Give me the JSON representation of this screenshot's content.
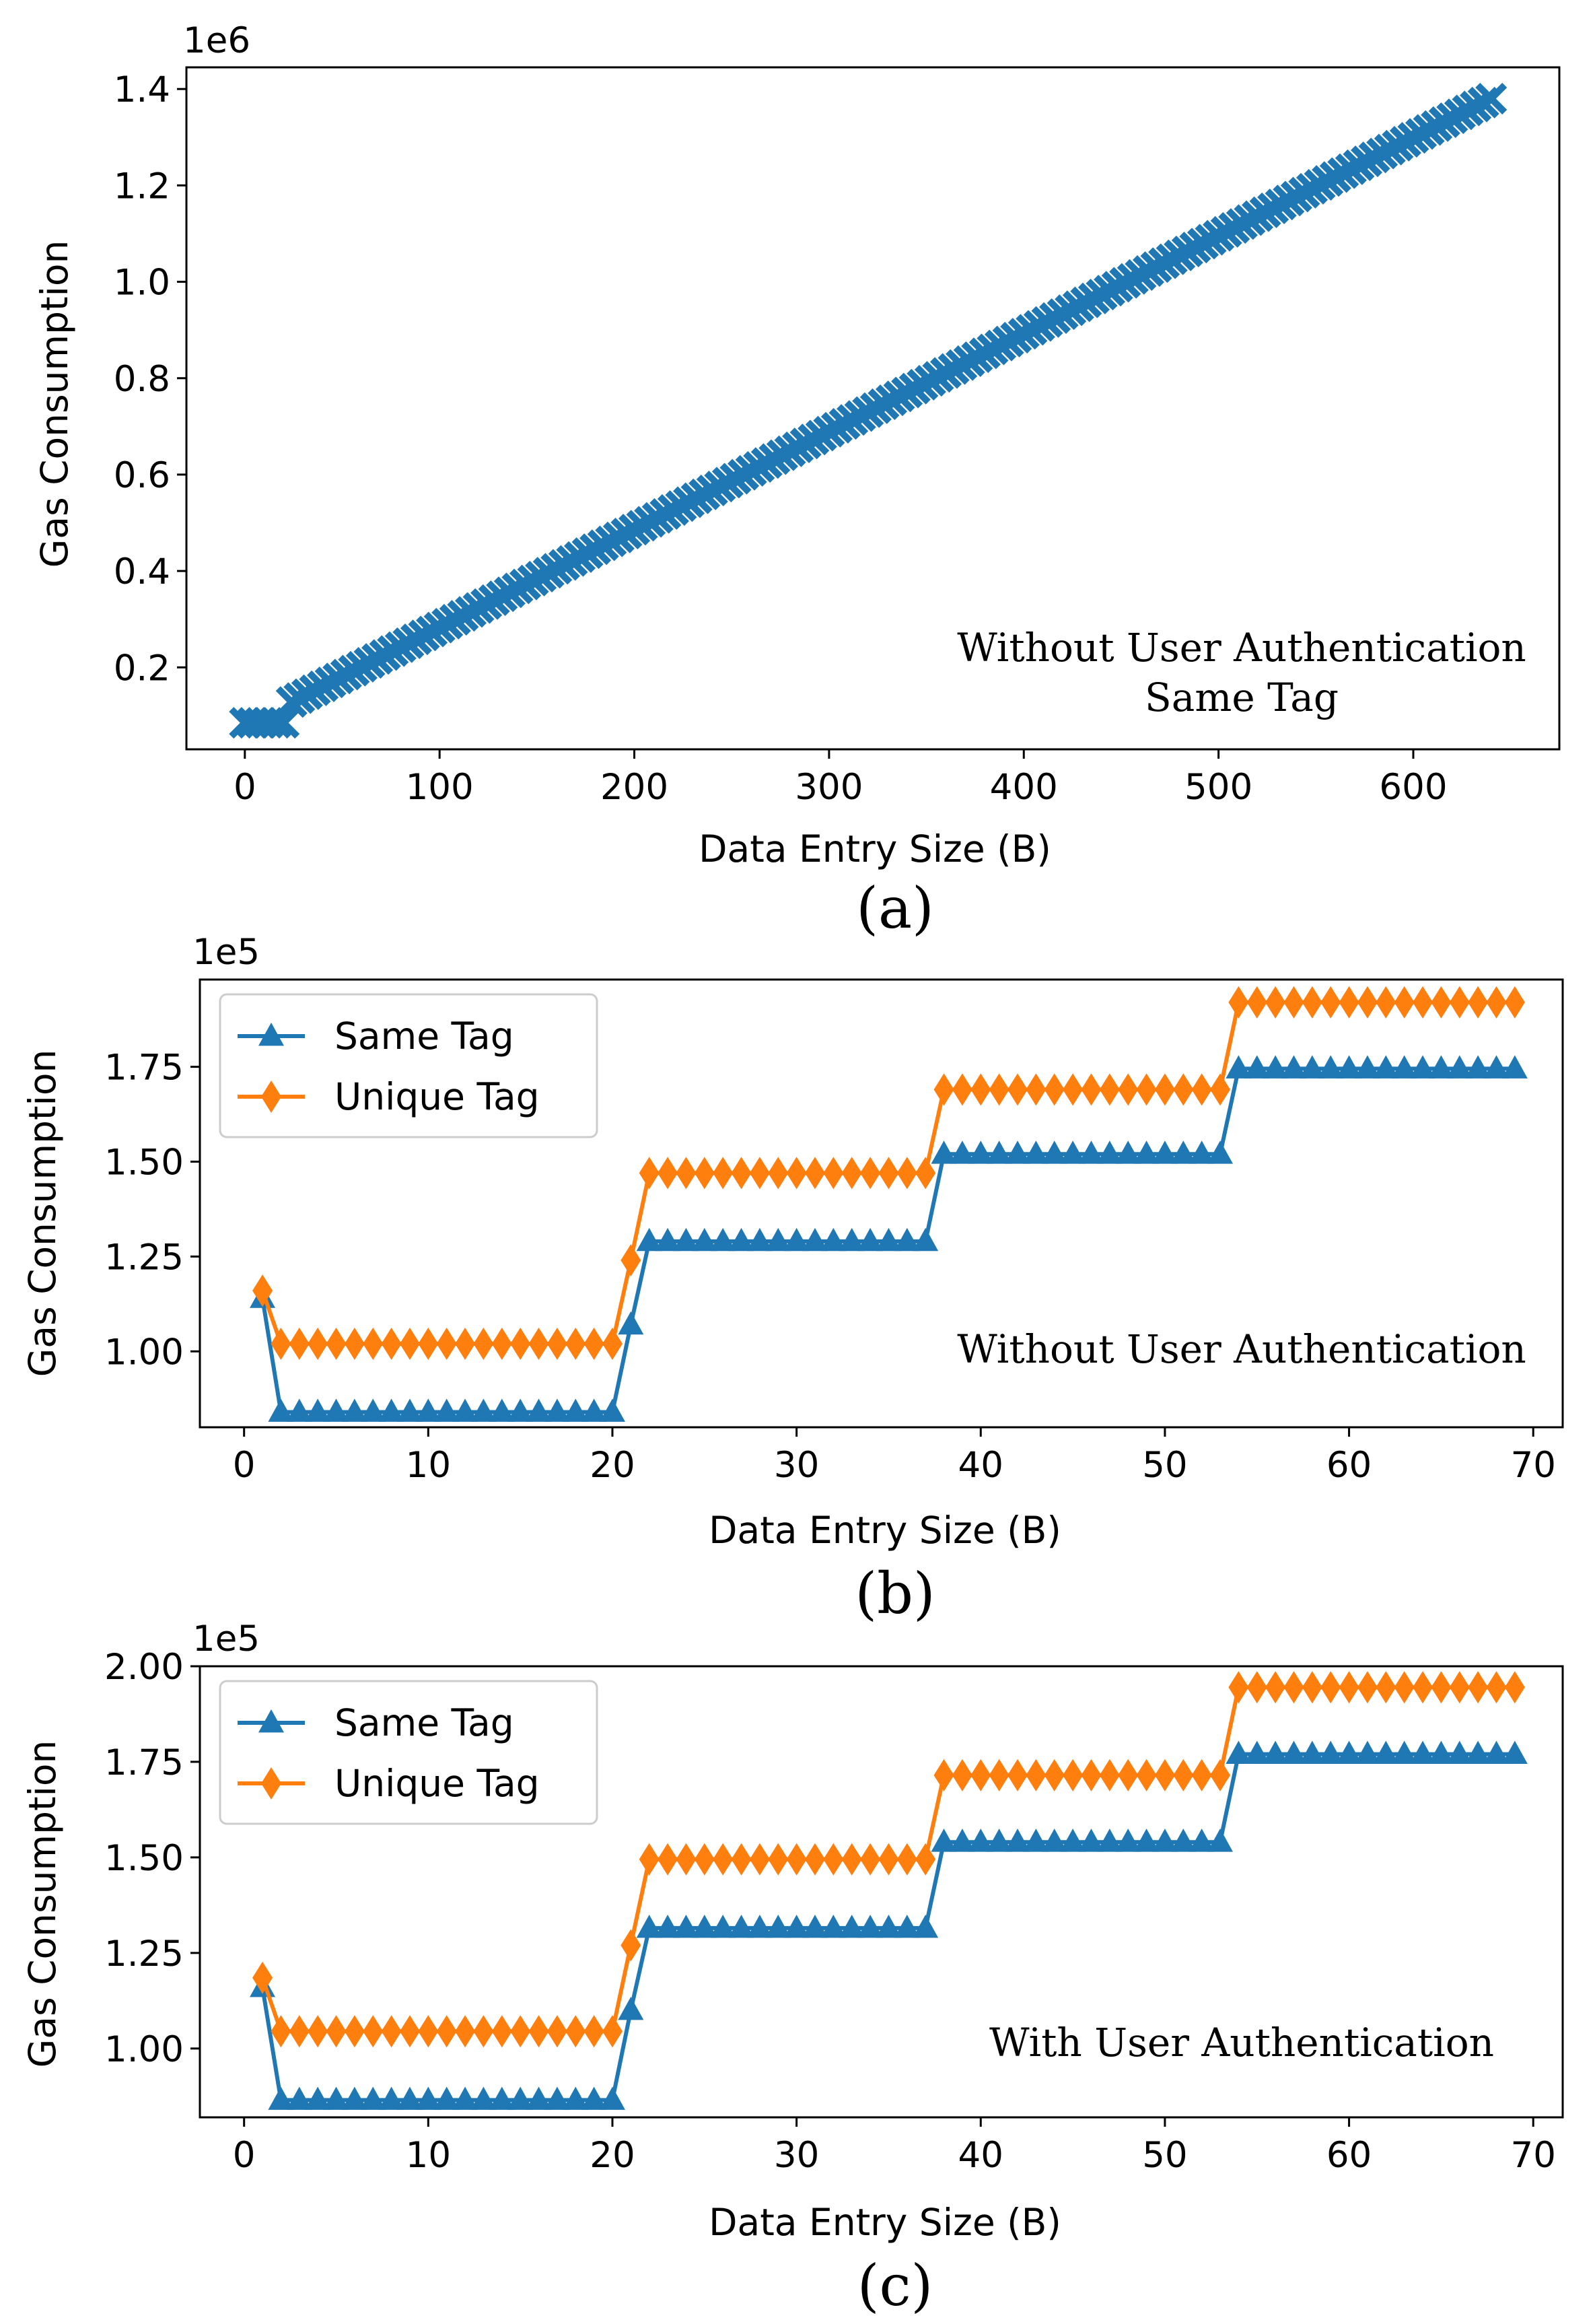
{
  "chart_data": [
    {
      "panel_label": "(a)",
      "type": "scatter",
      "xlabel": "Data Entry Size (B)",
      "ylabel": "Gas Consumption",
      "multiplier": "1e6",
      "xlim": [
        -30,
        675
      ],
      "ylim": [
        0.03,
        1.445
      ],
      "xticks": [
        0,
        100,
        200,
        300,
        400,
        500,
        600
      ],
      "xtick_labels": [
        "0",
        "100",
        "200",
        "300",
        "400",
        "500",
        "600"
      ],
      "yticks": [
        0.2,
        0.4,
        0.6,
        0.8,
        1.0,
        1.2,
        1.4
      ],
      "ytick_labels": [
        "0.2",
        "0.4",
        "0.6",
        "0.8",
        "1.0",
        "1.2",
        "1.4"
      ],
      "annotation": [
        "Without User Authentication",
        "Same Tag"
      ],
      "legend_position": "none",
      "series": [
        {
          "name": "Same Tag",
          "color": "#1f77b4",
          "marker": "x",
          "x_start": 0,
          "x_end": 640,
          "x_step": 4,
          "y_start": 0.085,
          "y_end": 1.38,
          "flat_until": 20
        }
      ]
    },
    {
      "panel_label": "(b)",
      "type": "line",
      "xlabel": "Data Entry Size (B)",
      "ylabel": "Gas Consumption",
      "multiplier": "1e5",
      "xlim": [
        -2.4,
        71.6
      ],
      "ylim": [
        0.8,
        1.98
      ],
      "xticks": [
        0,
        10,
        20,
        30,
        40,
        50,
        60,
        70
      ],
      "xtick_labels": [
        "0",
        "10",
        "20",
        "30",
        "40",
        "50",
        "60",
        "70"
      ],
      "yticks": [
        1.0,
        1.25,
        1.5,
        1.75
      ],
      "ytick_labels": [
        "1.00",
        "1.25",
        "1.50",
        "1.75"
      ],
      "annotation": [
        "Without User Authentication"
      ],
      "legend_position": "upper-left",
      "series": [
        {
          "name": "Same Tag",
          "color": "#1f77b4",
          "marker": "triangle",
          "x": [
            1,
            2,
            20,
            21,
            22,
            37,
            38,
            53,
            54,
            69
          ],
          "y": [
            1.14,
            0.84,
            0.84,
            1.07,
            1.29,
            1.29,
            1.52,
            1.52,
            1.745,
            1.745
          ]
        },
        {
          "name": "Unique Tag",
          "color": "#ff7f0e",
          "marker": "diamond",
          "x": [
            1,
            2,
            20,
            21,
            22,
            37,
            38,
            53,
            54,
            69
          ],
          "y": [
            1.16,
            1.02,
            1.02,
            1.24,
            1.47,
            1.47,
            1.69,
            1.69,
            1.92,
            1.92
          ]
        }
      ]
    },
    {
      "panel_label": "(c)",
      "type": "line",
      "xlabel": "Data Entry Size (B)",
      "ylabel": "Gas Consumption",
      "multiplier": "1e5",
      "xlim": [
        -2.4,
        71.6
      ],
      "ylim": [
        0.82,
        2.0
      ],
      "xticks": [
        0,
        10,
        20,
        30,
        40,
        50,
        60,
        70
      ],
      "xtick_labels": [
        "0",
        "10",
        "20",
        "30",
        "40",
        "50",
        "60",
        "70"
      ],
      "yticks": [
        1.0,
        1.25,
        1.5,
        1.75,
        2.0
      ],
      "ytick_labels": [
        "1.00",
        "1.25",
        "1.50",
        "1.75",
        "2.00"
      ],
      "annotation": [
        "With User Authentication"
      ],
      "legend_position": "upper-left",
      "series": [
        {
          "name": "Same Tag",
          "color": "#1f77b4",
          "marker": "triangle",
          "x": [
            1,
            2,
            20,
            21,
            22,
            37,
            38,
            53,
            54,
            69
          ],
          "y": [
            1.16,
            0.865,
            0.865,
            1.1,
            1.315,
            1.315,
            1.54,
            1.54,
            1.77,
            1.77
          ]
        },
        {
          "name": "Unique Tag",
          "color": "#ff7f0e",
          "marker": "diamond",
          "x": [
            1,
            2,
            20,
            21,
            22,
            37,
            38,
            53,
            54,
            69
          ],
          "y": [
            1.185,
            1.045,
            1.045,
            1.27,
            1.495,
            1.495,
            1.715,
            1.715,
            1.945,
            1.945
          ]
        }
      ]
    }
  ]
}
